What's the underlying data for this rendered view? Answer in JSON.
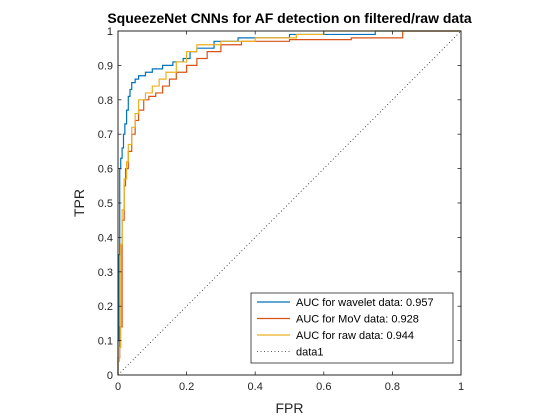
{
  "chart_data": {
    "type": "line",
    "title": "SqueezeNet CNNs for AF detection on filtered/raw data",
    "xlabel": "FPR",
    "ylabel": "TPR",
    "xlim": [
      0,
      1
    ],
    "ylim": [
      0,
      1
    ],
    "xticks": [
      "0",
      "0.2",
      "0.4",
      "0.6",
      "0.8",
      "1"
    ],
    "yticks": [
      "0",
      "0.1",
      "0.2",
      "0.3",
      "0.4",
      "0.5",
      "0.6",
      "0.7",
      "0.8",
      "0.9",
      "1"
    ],
    "grid": false,
    "legend_position": "bottom-right",
    "series": [
      {
        "name": "AUC for wavelet data: 0.957",
        "color": "#0072BD",
        "style": "solid",
        "points": [
          [
            0,
            0
          ],
          [
            0,
            0.1
          ],
          [
            0.003,
            0.1
          ],
          [
            0.003,
            0.35
          ],
          [
            0.005,
            0.35
          ],
          [
            0.005,
            0.6
          ],
          [
            0.008,
            0.6
          ],
          [
            0.008,
            0.63
          ],
          [
            0.012,
            0.63
          ],
          [
            0.012,
            0.66
          ],
          [
            0.016,
            0.66
          ],
          [
            0.016,
            0.7
          ],
          [
            0.02,
            0.7
          ],
          [
            0.02,
            0.73
          ],
          [
            0.025,
            0.73
          ],
          [
            0.025,
            0.77
          ],
          [
            0.03,
            0.77
          ],
          [
            0.03,
            0.81
          ],
          [
            0.035,
            0.81
          ],
          [
            0.035,
            0.83
          ],
          [
            0.04,
            0.83
          ],
          [
            0.04,
            0.85
          ],
          [
            0.05,
            0.85
          ],
          [
            0.05,
            0.86
          ],
          [
            0.06,
            0.86
          ],
          [
            0.06,
            0.87
          ],
          [
            0.08,
            0.87
          ],
          [
            0.08,
            0.88
          ],
          [
            0.1,
            0.88
          ],
          [
            0.1,
            0.89
          ],
          [
            0.13,
            0.89
          ],
          [
            0.13,
            0.9
          ],
          [
            0.16,
            0.9
          ],
          [
            0.16,
            0.91
          ],
          [
            0.19,
            0.91
          ],
          [
            0.19,
            0.92
          ],
          [
            0.21,
            0.92
          ],
          [
            0.21,
            0.94
          ],
          [
            0.23,
            0.94
          ],
          [
            0.23,
            0.95
          ],
          [
            0.28,
            0.95
          ],
          [
            0.28,
            0.97
          ],
          [
            0.35,
            0.97
          ],
          [
            0.35,
            0.98
          ],
          [
            0.5,
            0.98
          ],
          [
            0.5,
            0.99
          ],
          [
            0.75,
            0.99
          ],
          [
            0.75,
            1
          ],
          [
            1,
            1
          ]
        ]
      },
      {
        "name": "AUC for MoV data: 0.928",
        "color": "#D95319",
        "style": "solid",
        "points": [
          [
            0,
            0
          ],
          [
            0,
            0.05
          ],
          [
            0.005,
            0.05
          ],
          [
            0.005,
            0.14
          ],
          [
            0.012,
            0.14
          ],
          [
            0.012,
            0.45
          ],
          [
            0.018,
            0.45
          ],
          [
            0.018,
            0.55
          ],
          [
            0.022,
            0.55
          ],
          [
            0.022,
            0.6
          ],
          [
            0.03,
            0.6
          ],
          [
            0.03,
            0.65
          ],
          [
            0.04,
            0.65
          ],
          [
            0.04,
            0.7
          ],
          [
            0.05,
            0.7
          ],
          [
            0.05,
            0.74
          ],
          [
            0.06,
            0.74
          ],
          [
            0.06,
            0.77
          ],
          [
            0.075,
            0.77
          ],
          [
            0.075,
            0.8
          ],
          [
            0.09,
            0.8
          ],
          [
            0.09,
            0.81
          ],
          [
            0.11,
            0.81
          ],
          [
            0.11,
            0.82
          ],
          [
            0.13,
            0.82
          ],
          [
            0.13,
            0.84
          ],
          [
            0.15,
            0.84
          ],
          [
            0.15,
            0.86
          ],
          [
            0.17,
            0.86
          ],
          [
            0.17,
            0.88
          ],
          [
            0.2,
            0.88
          ],
          [
            0.2,
            0.9
          ],
          [
            0.23,
            0.9
          ],
          [
            0.23,
            0.92
          ],
          [
            0.26,
            0.92
          ],
          [
            0.26,
            0.94
          ],
          [
            0.3,
            0.94
          ],
          [
            0.3,
            0.96
          ],
          [
            0.36,
            0.96
          ],
          [
            0.36,
            0.97
          ],
          [
            0.5,
            0.97
          ],
          [
            0.5,
            0.975
          ],
          [
            0.68,
            0.975
          ],
          [
            0.68,
            0.98
          ],
          [
            0.83,
            0.98
          ],
          [
            0.83,
            1
          ],
          [
            1,
            1
          ]
        ]
      },
      {
        "name": "AUC for raw data: 0.944",
        "color": "#EDB120",
        "style": "solid",
        "points": [
          [
            0,
            0
          ],
          [
            0,
            0.04
          ],
          [
            0.004,
            0.04
          ],
          [
            0.004,
            0.08
          ],
          [
            0.008,
            0.08
          ],
          [
            0.008,
            0.38
          ],
          [
            0.012,
            0.38
          ],
          [
            0.012,
            0.48
          ],
          [
            0.018,
            0.48
          ],
          [
            0.018,
            0.57
          ],
          [
            0.025,
            0.57
          ],
          [
            0.025,
            0.62
          ],
          [
            0.03,
            0.62
          ],
          [
            0.03,
            0.67
          ],
          [
            0.04,
            0.67
          ],
          [
            0.04,
            0.72
          ],
          [
            0.05,
            0.72
          ],
          [
            0.05,
            0.76
          ],
          [
            0.06,
            0.76
          ],
          [
            0.06,
            0.8
          ],
          [
            0.08,
            0.8
          ],
          [
            0.08,
            0.82
          ],
          [
            0.1,
            0.82
          ],
          [
            0.1,
            0.84
          ],
          [
            0.12,
            0.84
          ],
          [
            0.12,
            0.86
          ],
          [
            0.14,
            0.86
          ],
          [
            0.14,
            0.88
          ],
          [
            0.17,
            0.88
          ],
          [
            0.17,
            0.91
          ],
          [
            0.2,
            0.91
          ],
          [
            0.2,
            0.94
          ],
          [
            0.23,
            0.94
          ],
          [
            0.23,
            0.96
          ],
          [
            0.3,
            0.96
          ],
          [
            0.3,
            0.97
          ],
          [
            0.4,
            0.97
          ],
          [
            0.4,
            0.98
          ],
          [
            0.52,
            0.98
          ],
          [
            0.52,
            0.99
          ],
          [
            0.6,
            0.99
          ],
          [
            0.6,
            1
          ],
          [
            1,
            1
          ]
        ]
      },
      {
        "name": "data1",
        "color": "#262626",
        "style": "dotted",
        "points": [
          [
            0,
            0
          ],
          [
            1,
            1
          ]
        ]
      }
    ]
  }
}
